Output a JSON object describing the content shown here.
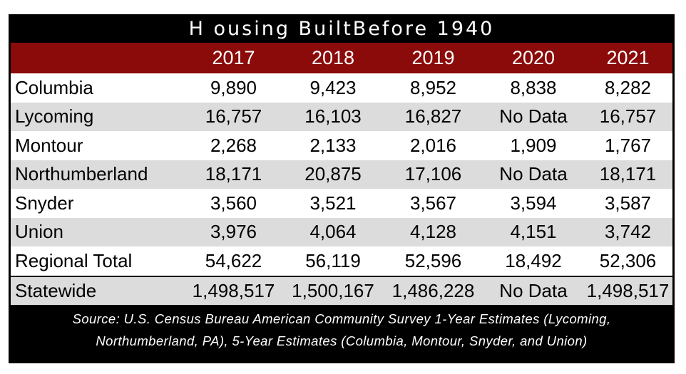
{
  "title": "H ousing BuiltBefore 1940",
  "columns": [
    "",
    "2017",
    "2018",
    "2019",
    "2020",
    "2021"
  ],
  "rows": [
    {
      "name": "Columbia",
      "values": [
        "9,890",
        "9,423",
        "8,952",
        "8,838",
        "8,282"
      ]
    },
    {
      "name": "Lycoming",
      "values": [
        "16,757",
        "16,103",
        "16,827",
        "No Data",
        "16,757"
      ]
    },
    {
      "name": "Montour",
      "values": [
        "2,268",
        "2,133",
        "2,016",
        "1,909",
        "1,767"
      ]
    },
    {
      "name": "Northumberland",
      "values": [
        "18,171",
        "20,875",
        "17,106",
        "No Data",
        "18,171"
      ]
    },
    {
      "name": "Snyder",
      "values": [
        "3,560",
        "3,521",
        "3,567",
        "3,594",
        "3,587"
      ]
    },
    {
      "name": "Union",
      "values": [
        "3,976",
        "4,064",
        "4,128",
        "4,151",
        "3,742"
      ]
    },
    {
      "name": "Regional Total",
      "values": [
        "54,622",
        "56,119",
        "52,596",
        "18,492",
        "52,306"
      ]
    },
    {
      "name": "Statewide",
      "values": [
        "1,498,517",
        "1,500,167",
        "1,486,228",
        "No Data",
        "1,498,517"
      ]
    }
  ],
  "source": {
    "line1": "Source: U.S. Census Bureau American Community Survey 1-Year Estimates (Lycoming,",
    "line2": "Northumberland, PA), 5-Year Estimates (Columbia, Montour, Snyder, and Union)"
  },
  "colors": {
    "header_bg": "#8b0a0a",
    "frame_bg": "#000000",
    "alt_row_bg": "#dcdcdc"
  }
}
